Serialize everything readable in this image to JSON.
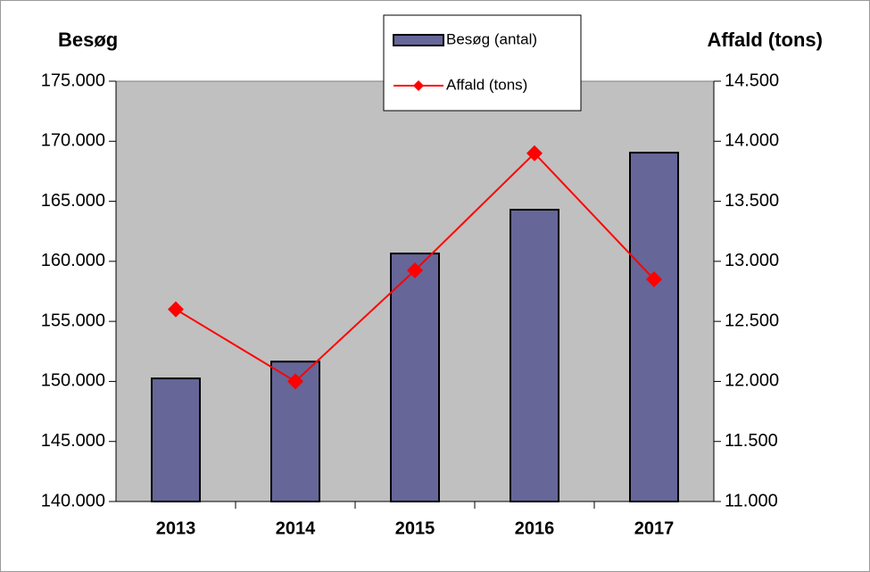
{
  "chart_data": {
    "type": "bar_line",
    "y_title": "Besøg",
    "y2_title": "Affald (tons)",
    "categories": [
      "2013",
      "2014",
      "2015",
      "2016",
      "2017"
    ],
    "series": [
      {
        "name": "Besøg (antal)",
        "type": "bar",
        "color": "#666699",
        "values": [
          150250,
          151650,
          160650,
          164300,
          169050
        ]
      },
      {
        "name": "Affald (tons)",
        "type": "line",
        "axis": "y2",
        "color": "#ff0000",
        "values": [
          12600,
          12000,
          12925,
          13900,
          12850
        ]
      }
    ],
    "ylim": [
      140000,
      175000
    ],
    "yticks": [
      {
        "value": 140000,
        "label": "140.000"
      },
      {
        "value": 145000,
        "label": "145.000"
      },
      {
        "value": 150000,
        "label": "150.000"
      },
      {
        "value": 155000,
        "label": "155.000"
      },
      {
        "value": 160000,
        "label": "160.000"
      },
      {
        "value": 165000,
        "label": "165.000"
      },
      {
        "value": 170000,
        "label": "170.000"
      },
      {
        "value": 175000,
        "label": "175.000"
      }
    ],
    "y2lim": [
      11000,
      14500
    ],
    "y2ticks": [
      {
        "value": 11000,
        "label": "11.000"
      },
      {
        "value": 11500,
        "label": "11.500"
      },
      {
        "value": 12000,
        "label": "12.000"
      },
      {
        "value": 12500,
        "label": "12.500"
      },
      {
        "value": 13000,
        "label": "13.000"
      },
      {
        "value": 13500,
        "label": "13.500"
      },
      {
        "value": 14000,
        "label": "14.000"
      },
      {
        "value": 14500,
        "label": "14.500"
      }
    ],
    "plot_background": "#c0c0c0"
  }
}
